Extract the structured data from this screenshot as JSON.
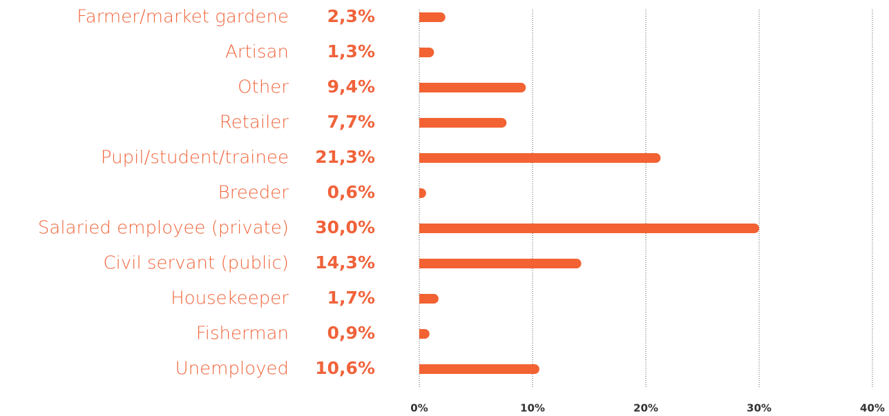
{
  "chart_data": {
    "type": "barh",
    "categories": [
      "Farmer/market gardene",
      "Artisan",
      "Other",
      "Retailer",
      "Pupil/student/trainee",
      "Breeder",
      "Salaried employee (private)",
      "Civil servant (public)",
      "Housekeeper",
      "Fisherman",
      "Unemployed"
    ],
    "values": [
      2.3,
      1.3,
      9.4,
      7.7,
      21.3,
      0.6,
      30.0,
      14.3,
      1.7,
      0.9,
      10.6
    ],
    "value_labels": [
      "2,3%",
      "1,3%",
      "9,4%",
      "7,7%",
      "21,3%",
      "0,6%",
      "30,0%",
      "14,3%",
      "1,7%",
      "0,9%",
      "10,6%"
    ],
    "color": "#f26232",
    "xlim": [
      0,
      40
    ],
    "xticks": [
      {
        "value": 0,
        "label": "0%"
      },
      {
        "value": 10,
        "label": "10%"
      },
      {
        "value": 20,
        "label": "20%"
      },
      {
        "value": 30,
        "label": "30%"
      },
      {
        "value": 40,
        "label": "40%"
      }
    ],
    "grid": true
  }
}
